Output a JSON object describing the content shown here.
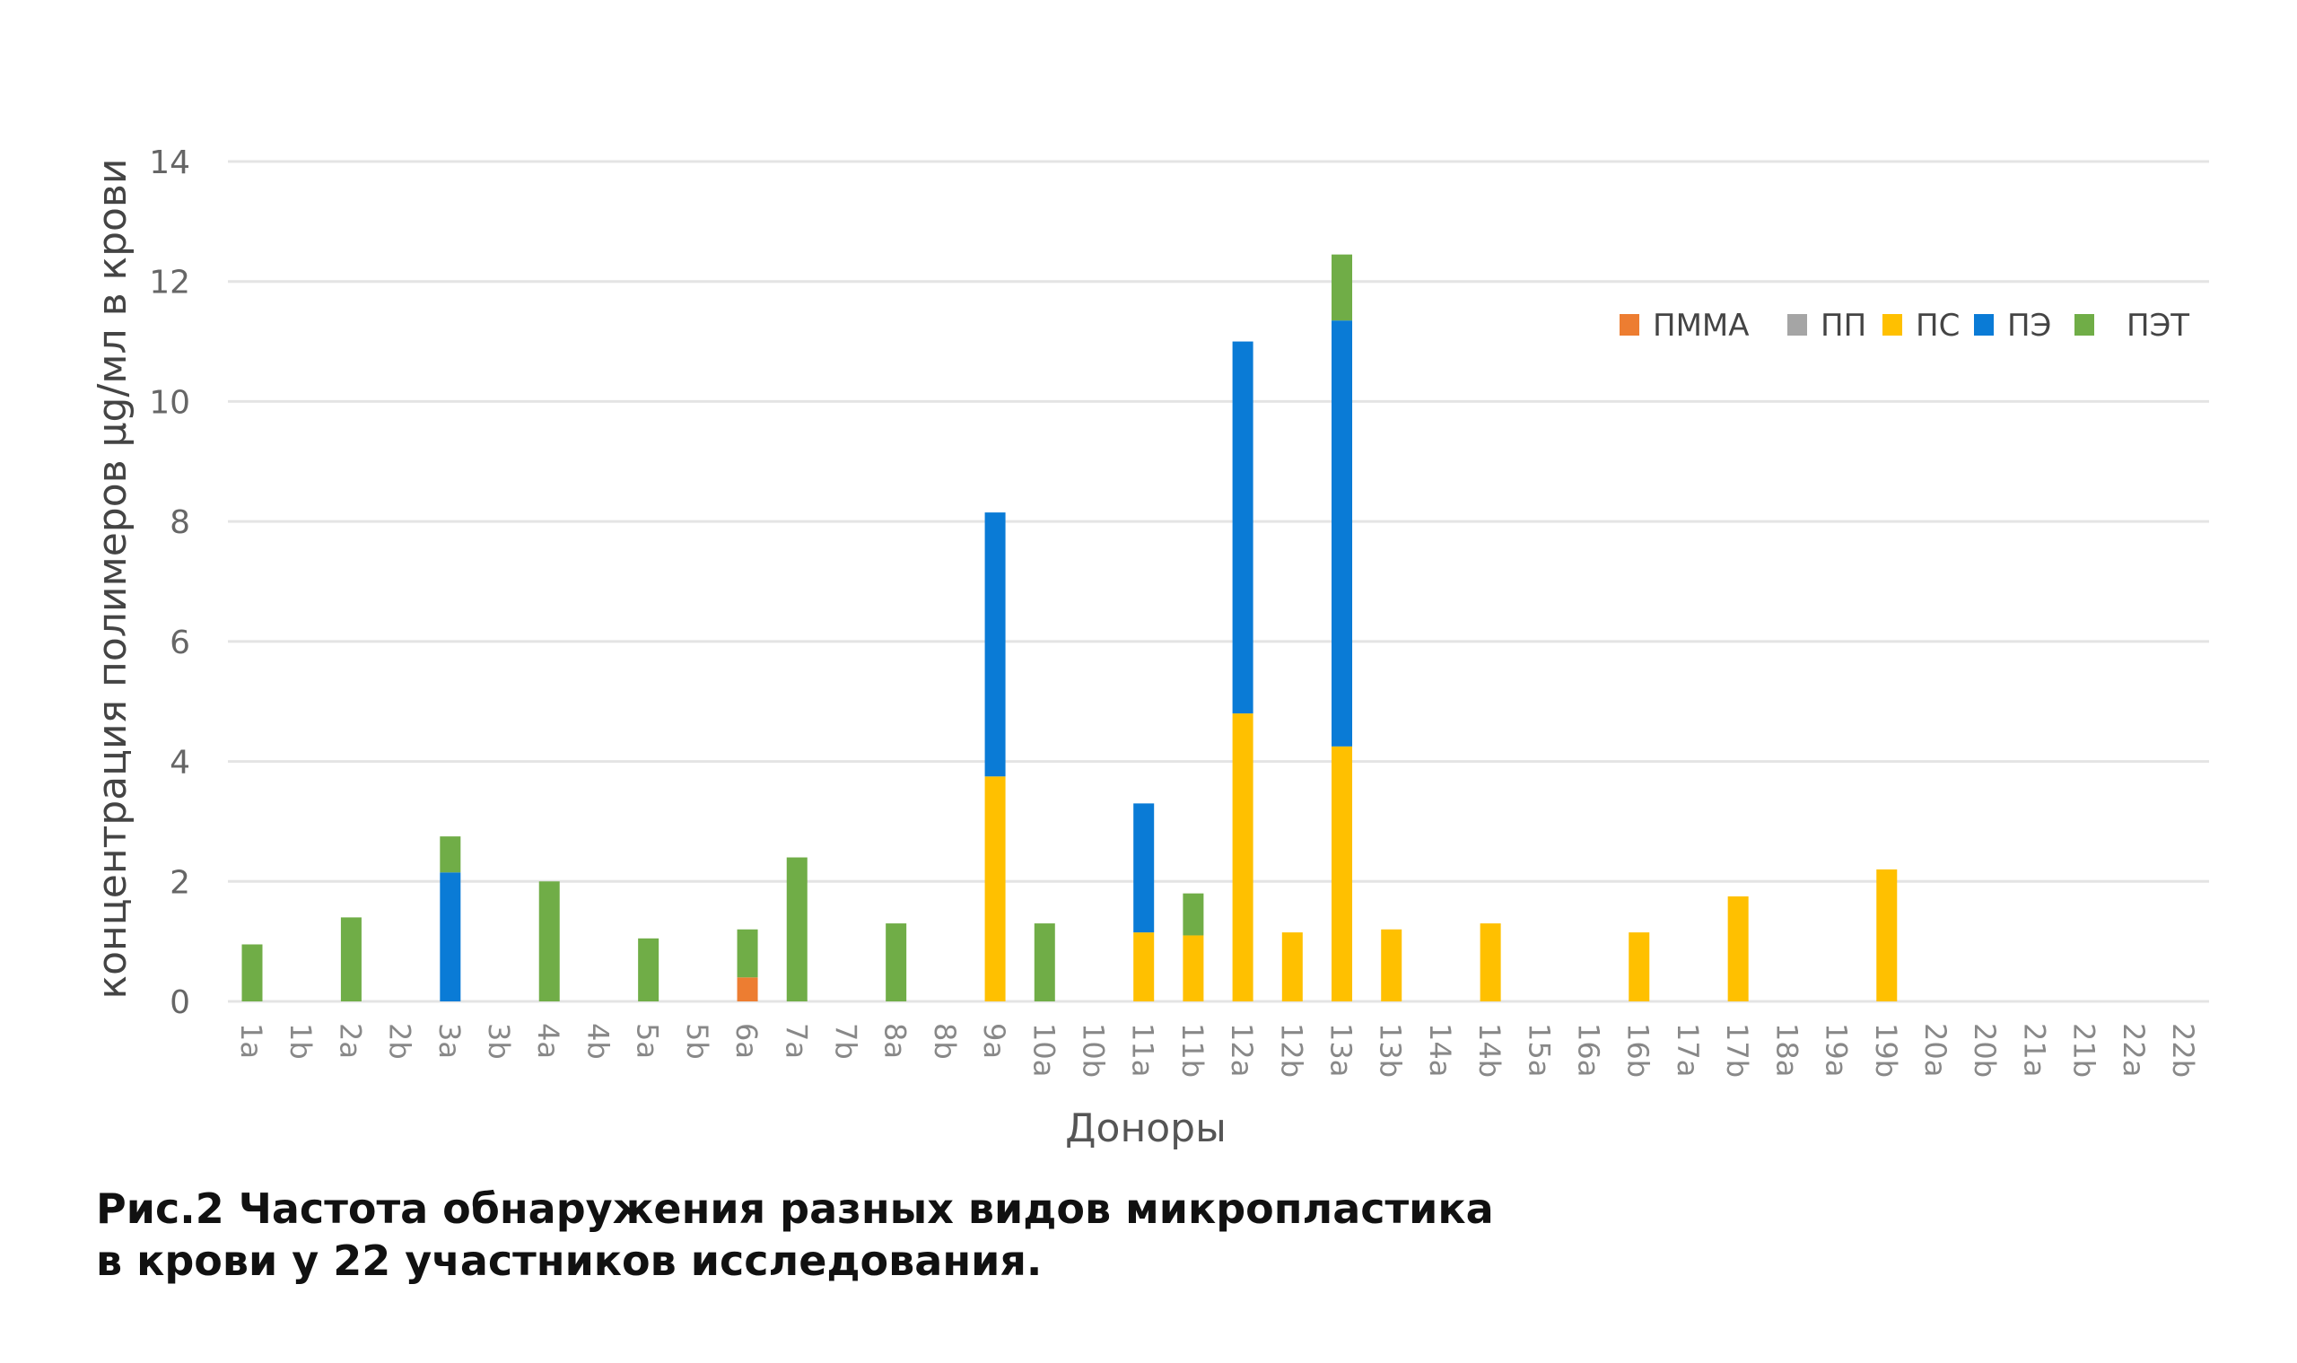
{
  "chart_data": {
    "type": "bar",
    "stacked": true,
    "title": "",
    "xlabel": "Доноры",
    "ylabel": "концентрация полимеров µg/мл в крови",
    "ylim": [
      0,
      14
    ],
    "yticks": [
      0,
      2,
      4,
      6,
      8,
      10,
      12,
      14
    ],
    "grid": true,
    "legend_position": "top-right",
    "categories": [
      "1a",
      "1b",
      "2a",
      "2b",
      "3a",
      "3b",
      "4a",
      "4b",
      "5a",
      "5b",
      "6a",
      "7a",
      "7b",
      "8a",
      "8b",
      "9a",
      "10a",
      "10b",
      "11a",
      "11b",
      "12a",
      "12b",
      "13a",
      "13b",
      "14a",
      "14b",
      "15a",
      "16a",
      "16b",
      "17a",
      "17b",
      "18a",
      "19a",
      "19b",
      "20a",
      "20b",
      "21a",
      "21b",
      "22a",
      "22b"
    ],
    "series": [
      {
        "name": "ПММА",
        "color": "#ED7D31",
        "values": [
          0,
          0,
          0,
          0,
          0,
          0,
          0,
          0,
          0,
          0,
          0.4,
          0,
          0,
          0,
          0,
          0,
          0,
          0,
          0,
          0,
          0,
          0,
          0,
          0,
          0,
          0,
          0,
          0,
          0,
          0,
          0,
          0,
          0,
          0,
          0,
          0,
          0,
          0,
          0,
          0
        ]
      },
      {
        "name": "ПП",
        "color": "#A5A5A5",
        "values": [
          0,
          0,
          0,
          0,
          0,
          0,
          0,
          0,
          0,
          0,
          0,
          0,
          0,
          0,
          0,
          0,
          0,
          0,
          0,
          0,
          0,
          0,
          0,
          0,
          0,
          0,
          0,
          0,
          0,
          0,
          0,
          0,
          0,
          0,
          0,
          0,
          0,
          0,
          0,
          0
        ]
      },
      {
        "name": "ПС",
        "color": "#FFC000",
        "values": [
          0,
          0,
          0,
          0,
          0,
          0,
          0,
          0,
          0,
          0,
          0,
          0,
          0,
          0,
          0,
          3.75,
          0,
          0,
          1.15,
          1.1,
          4.8,
          1.15,
          4.25,
          1.2,
          0,
          1.3,
          0,
          0,
          1.15,
          0,
          1.75,
          0,
          0,
          2.2,
          0,
          0,
          0,
          0,
          0,
          0
        ]
      },
      {
        "name": "ПЭ",
        "color": "#0A7BD6",
        "values": [
          0,
          0,
          0,
          0,
          2.15,
          0,
          0,
          0,
          0,
          0,
          0,
          0,
          0,
          0,
          0,
          4.4,
          0,
          0,
          2.15,
          0,
          6.2,
          0,
          7.1,
          0,
          0,
          0,
          0,
          0,
          0,
          0,
          0,
          0,
          0,
          0,
          0,
          0,
          0,
          0,
          0,
          0
        ]
      },
      {
        "name": "ПЭТ",
        "color": "#70AD47",
        "values": [
          0.95,
          0,
          1.4,
          0,
          0.6,
          0,
          2.0,
          0,
          1.05,
          0,
          0.8,
          2.4,
          0,
          1.3,
          0,
          0,
          1.3,
          0,
          0,
          0.7,
          0,
          0,
          1.1,
          0,
          0,
          0,
          0,
          0,
          0,
          0,
          0,
          0,
          0,
          0,
          0,
          0,
          0,
          0,
          0,
          0
        ]
      }
    ]
  },
  "caption": {
    "line1": "Рис.2 Частота обнаружения разных видов микропластика",
    "line2": "в крови у 22 участников исследования."
  }
}
